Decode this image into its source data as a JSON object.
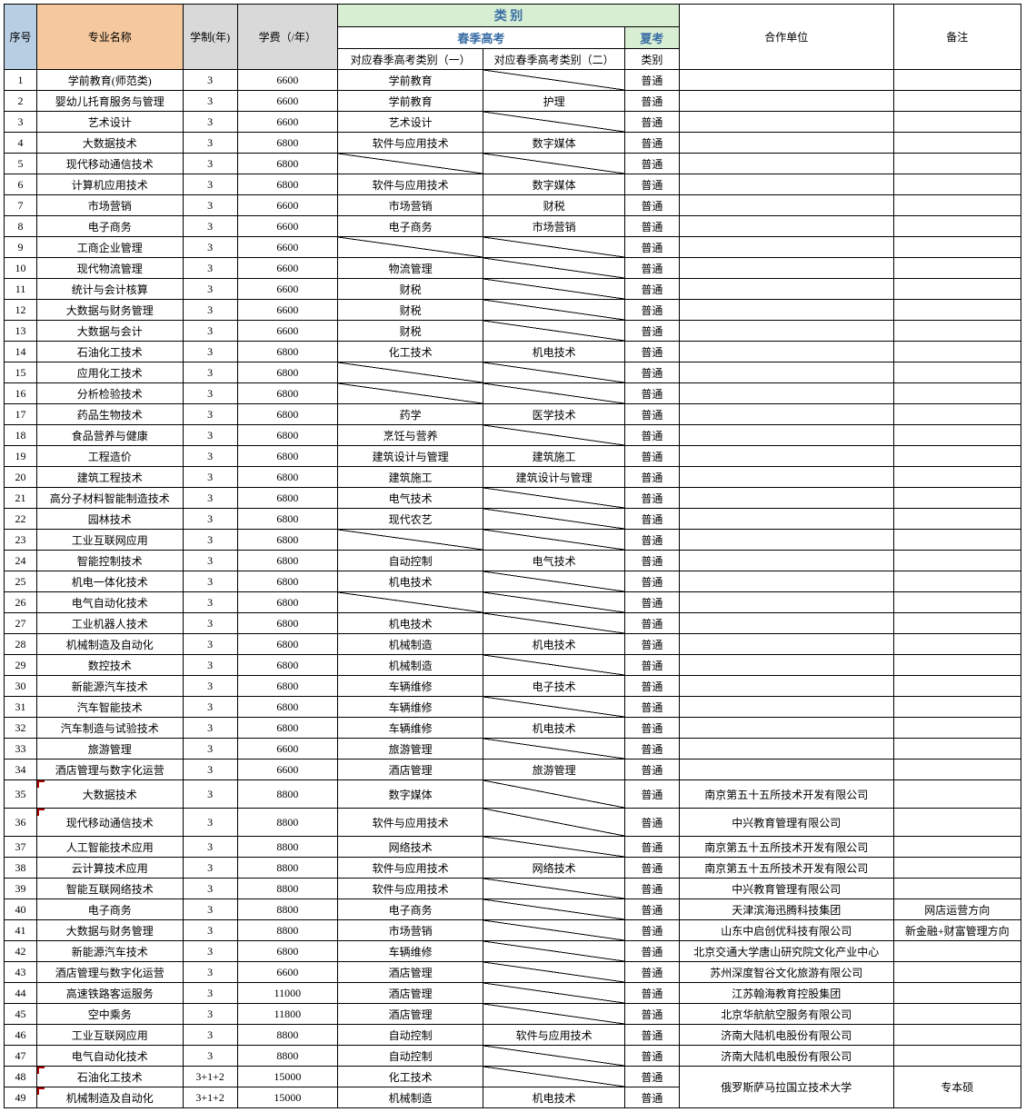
{
  "colors": {
    "header_seq_bg": "#b7cee3",
    "header_name_bg": "#f5c89e",
    "header_gray_bg": "#d9d9d9",
    "header_green_bg": "#d8eed3",
    "header_link_color": "#3a6ea5",
    "border": "#000000",
    "mark": "#a00000",
    "background": "#ffffff"
  },
  "headers": {
    "seq": "序号",
    "name": "专业名称",
    "study": "学制(年)",
    "fee": "学费（/年）",
    "category": "类 别",
    "spring": "春季高考",
    "summer": "夏考",
    "spring1": "对应春季高考类别（一）",
    "spring2": "对应春季高考类别（二）",
    "summer_sub": "类别",
    "partner": "合作单位",
    "note": "备注"
  },
  "rows": [
    {
      "seq": "1",
      "name": "学前教育(师范类)",
      "study": "3",
      "fee": "6600",
      "s1": "学前教育",
      "s2": "DIAG",
      "summer": "普通",
      "partner": "",
      "note": ""
    },
    {
      "seq": "2",
      "name": "婴幼儿托育服务与管理",
      "study": "3",
      "fee": "6600",
      "s1": "学前教育",
      "s2": "护理",
      "summer": "普通",
      "partner": "",
      "note": ""
    },
    {
      "seq": "3",
      "name": "艺术设计",
      "study": "3",
      "fee": "6600",
      "s1": "艺术设计",
      "s2": "DIAG",
      "summer": "普通",
      "partner": "",
      "note": ""
    },
    {
      "seq": "4",
      "name": "大数据技术",
      "study": "3",
      "fee": "6800",
      "s1": "软件与应用技术",
      "s2": "数字媒体",
      "summer": "普通",
      "partner": "",
      "note": ""
    },
    {
      "seq": "5",
      "name": "现代移动通信技术",
      "study": "3",
      "fee": "6800",
      "s1": "DIAG",
      "s2": "DIAG",
      "summer": "普通",
      "partner": "",
      "note": ""
    },
    {
      "seq": "6",
      "name": "计算机应用技术",
      "study": "3",
      "fee": "6800",
      "s1": "软件与应用技术",
      "s2": "数字媒体",
      "summer": "普通",
      "partner": "",
      "note": ""
    },
    {
      "seq": "7",
      "name": "市场营销",
      "study": "3",
      "fee": "6600",
      "s1": "市场营销",
      "s2": "财税",
      "summer": "普通",
      "partner": "",
      "note": ""
    },
    {
      "seq": "8",
      "name": "电子商务",
      "study": "3",
      "fee": "6600",
      "s1": "电子商务",
      "s2": "市场营销",
      "summer": "普通",
      "partner": "",
      "note": ""
    },
    {
      "seq": "9",
      "name": "工商企业管理",
      "study": "3",
      "fee": "6600",
      "s1": "DIAG",
      "s2": "DIAG",
      "summer": "普通",
      "partner": "",
      "note": ""
    },
    {
      "seq": "10",
      "name": "现代物流管理",
      "study": "3",
      "fee": "6600",
      "s1": "物流管理",
      "s2": "DIAG",
      "summer": "普通",
      "partner": "",
      "note": ""
    },
    {
      "seq": "11",
      "name": "统计与会计核算",
      "study": "3",
      "fee": "6600",
      "s1": "财税",
      "s2": "DIAG",
      "summer": "普通",
      "partner": "",
      "note": ""
    },
    {
      "seq": "12",
      "name": "大数据与财务管理",
      "study": "3",
      "fee": "6600",
      "s1": "财税",
      "s2": "DIAG",
      "summer": "普通",
      "partner": "",
      "note": ""
    },
    {
      "seq": "13",
      "name": "大数据与会计",
      "study": "3",
      "fee": "6600",
      "s1": "财税",
      "s2": "DIAG",
      "summer": "普通",
      "partner": "",
      "note": ""
    },
    {
      "seq": "14",
      "name": "石油化工技术",
      "study": "3",
      "fee": "6800",
      "s1": "化工技术",
      "s2": "机电技术",
      "summer": "普通",
      "partner": "",
      "note": ""
    },
    {
      "seq": "15",
      "name": "应用化工技术",
      "study": "3",
      "fee": "6800",
      "s1": "DIAG",
      "s2": "DIAG",
      "summer": "普通",
      "partner": "",
      "note": ""
    },
    {
      "seq": "16",
      "name": "分析检验技术",
      "study": "3",
      "fee": "6800",
      "s1": "DIAG",
      "s2": "DIAG",
      "summer": "普通",
      "partner": "",
      "note": ""
    },
    {
      "seq": "17",
      "name": "药品生物技术",
      "study": "3",
      "fee": "6800",
      "s1": "药学",
      "s2": "医学技术",
      "summer": "普通",
      "partner": "",
      "note": ""
    },
    {
      "seq": "18",
      "name": "食品营养与健康",
      "study": "3",
      "fee": "6800",
      "s1": "烹饪与营养",
      "s2": "DIAG",
      "summer": "普通",
      "partner": "",
      "note": ""
    },
    {
      "seq": "19",
      "name": "工程造价",
      "study": "3",
      "fee": "6800",
      "s1": "建筑设计与管理",
      "s2": "建筑施工",
      "summer": "普通",
      "partner": "",
      "note": ""
    },
    {
      "seq": "20",
      "name": "建筑工程技术",
      "study": "3",
      "fee": "6800",
      "s1": "建筑施工",
      "s2": "建筑设计与管理",
      "summer": "普通",
      "partner": "",
      "note": ""
    },
    {
      "seq": "21",
      "name": "高分子材料智能制造技术",
      "study": "3",
      "fee": "6800",
      "s1": "电气技术",
      "s2": "DIAG",
      "summer": "普通",
      "partner": "",
      "note": ""
    },
    {
      "seq": "22",
      "name": "园林技术",
      "study": "3",
      "fee": "6800",
      "s1": "现代农艺",
      "s2": "DIAG",
      "summer": "普通",
      "partner": "",
      "note": ""
    },
    {
      "seq": "23",
      "name": "工业互联网应用",
      "study": "3",
      "fee": "6800",
      "s1": "DIAG",
      "s2": "DIAG",
      "summer": "普通",
      "partner": "",
      "note": ""
    },
    {
      "seq": "24",
      "name": "智能控制技术",
      "study": "3",
      "fee": "6800",
      "s1": "自动控制",
      "s2": "电气技术",
      "summer": "普通",
      "partner": "",
      "note": ""
    },
    {
      "seq": "25",
      "name": "机电一体化技术",
      "study": "3",
      "fee": "6800",
      "s1": "机电技术",
      "s2": "DIAG",
      "summer": "普通",
      "partner": "",
      "note": ""
    },
    {
      "seq": "26",
      "name": "电气自动化技术",
      "study": "3",
      "fee": "6800",
      "s1": "DIAG",
      "s2": "DIAG",
      "summer": "普通",
      "partner": "",
      "note": ""
    },
    {
      "seq": "27",
      "name": "工业机器人技术",
      "study": "3",
      "fee": "6800",
      "s1": "机电技术",
      "s2": "DIAG",
      "summer": "普通",
      "partner": "",
      "note": ""
    },
    {
      "seq": "28",
      "name": "机械制造及自动化",
      "study": "3",
      "fee": "6800",
      "s1": "机械制造",
      "s2": "机电技术",
      "summer": "普通",
      "partner": "",
      "note": ""
    },
    {
      "seq": "29",
      "name": "数控技术",
      "study": "3",
      "fee": "6800",
      "s1": "机械制造",
      "s2": "DIAG",
      "summer": "普通",
      "partner": "",
      "note": ""
    },
    {
      "seq": "30",
      "name": "新能源汽车技术",
      "study": "3",
      "fee": "6800",
      "s1": "车辆维修",
      "s2": "电子技术",
      "summer": "普通",
      "partner": "",
      "note": ""
    },
    {
      "seq": "31",
      "name": "汽车智能技术",
      "study": "3",
      "fee": "6800",
      "s1": "车辆维修",
      "s2": "DIAG",
      "summer": "普通",
      "partner": "",
      "note": ""
    },
    {
      "seq": "32",
      "name": "汽车制造与试验技术",
      "study": "3",
      "fee": "6800",
      "s1": "车辆维修",
      "s2": "机电技术",
      "summer": "普通",
      "partner": "",
      "note": ""
    },
    {
      "seq": "33",
      "name": "旅游管理",
      "study": "3",
      "fee": "6600",
      "s1": "旅游管理",
      "s2": "DIAG",
      "summer": "普通",
      "partner": "",
      "note": ""
    },
    {
      "seq": "34",
      "name": "酒店管理与数字化运营",
      "study": "3",
      "fee": "6600",
      "s1": "酒店管理",
      "s2": "旅游管理",
      "summer": "普通",
      "partner": "",
      "note": ""
    },
    {
      "seq": "35",
      "name": "大数据技术",
      "study": "3",
      "fee": "8800",
      "s1": "数字媒体",
      "s2": "DIAG",
      "summer": "普通",
      "partner": "南京第五十五所技术开发有限公司",
      "note": "",
      "tall": true,
      "mark": true
    },
    {
      "seq": "36",
      "name": "现代移动通信技术",
      "study": "3",
      "fee": "8800",
      "s1": "软件与应用技术",
      "s2": "DIAG",
      "summer": "普通",
      "partner": "中兴教育管理有限公司",
      "note": "",
      "tall": true,
      "mark": true
    },
    {
      "seq": "37",
      "name": "人工智能技术应用",
      "study": "3",
      "fee": "8800",
      "s1": "网络技术",
      "s2": "DIAG",
      "summer": "普通",
      "partner": "南京第五十五所技术开发有限公司",
      "note": ""
    },
    {
      "seq": "38",
      "name": "云计算技术应用",
      "study": "3",
      "fee": "8800",
      "s1": "软件与应用技术",
      "s2": "网络技术",
      "summer": "普通",
      "partner": "南京第五十五所技术开发有限公司",
      "note": ""
    },
    {
      "seq": "39",
      "name": "智能互联网络技术",
      "study": "3",
      "fee": "8800",
      "s1": "软件与应用技术",
      "s2": "DIAG",
      "summer": "普通",
      "partner": "中兴教育管理有限公司",
      "note": ""
    },
    {
      "seq": "40",
      "name": "电子商务",
      "study": "3",
      "fee": "8800",
      "s1": "电子商务",
      "s2": "DIAG",
      "summer": "普通",
      "partner": "天津滨海迅腾科技集团",
      "note": "网店运营方向"
    },
    {
      "seq": "41",
      "name": "大数据与财务管理",
      "study": "3",
      "fee": "8800",
      "s1": "市场营销",
      "s2": "DIAG",
      "summer": "普通",
      "partner": "山东中启创优科技有限公司",
      "note": "新金融+财富管理方向"
    },
    {
      "seq": "42",
      "name": "新能源汽车技术",
      "study": "3",
      "fee": "6800",
      "s1": "车辆维修",
      "s2": "DIAG",
      "summer": "普通",
      "partner": "北京交通大学唐山研究院文化产业中心",
      "note": ""
    },
    {
      "seq": "43",
      "name": "酒店管理与数字化运营",
      "study": "3",
      "fee": "6600",
      "s1": "酒店管理",
      "s2": "DIAG",
      "summer": "普通",
      "partner": "苏州深度智谷文化旅游有限公司",
      "note": ""
    },
    {
      "seq": "44",
      "name": "高速铁路客运服务",
      "study": "3",
      "fee": "11000",
      "s1": "酒店管理",
      "s2": "DIAG",
      "summer": "普通",
      "partner": "江苏翰海教育控股集团",
      "note": ""
    },
    {
      "seq": "45",
      "name": "空中乘务",
      "study": "3",
      "fee": "11800",
      "s1": "酒店管理",
      "s2": "DIAG",
      "summer": "普通",
      "partner": "北京华航航空服务有限公司",
      "note": ""
    },
    {
      "seq": "46",
      "name": "工业互联网应用",
      "study": "3",
      "fee": "8800",
      "s1": "自动控制",
      "s2": "软件与应用技术",
      "summer": "普通",
      "partner": "济南大陆机电股份有限公司",
      "note": ""
    },
    {
      "seq": "47",
      "name": "电气自动化技术",
      "study": "3",
      "fee": "8800",
      "s1": "自动控制",
      "s2": "DIAG",
      "summer": "普通",
      "partner": "济南大陆机电股份有限公司",
      "note": ""
    },
    {
      "seq": "48",
      "name": "石油化工技术",
      "study": "3+1+2",
      "fee": "15000",
      "s1": "化工技术",
      "s2": "DIAG",
      "summer": "普通",
      "partner": "MERGE:俄罗斯萨马拉国立技术大学",
      "note": "MERGE:专本硕",
      "mark": true
    },
    {
      "seq": "49",
      "name": "机械制造及自动化",
      "study": "3+1+2",
      "fee": "15000",
      "s1": "机械制造",
      "s2": "机电技术",
      "summer": "普通",
      "partner": "MERGED",
      "note": "MERGED",
      "mark": true
    }
  ]
}
